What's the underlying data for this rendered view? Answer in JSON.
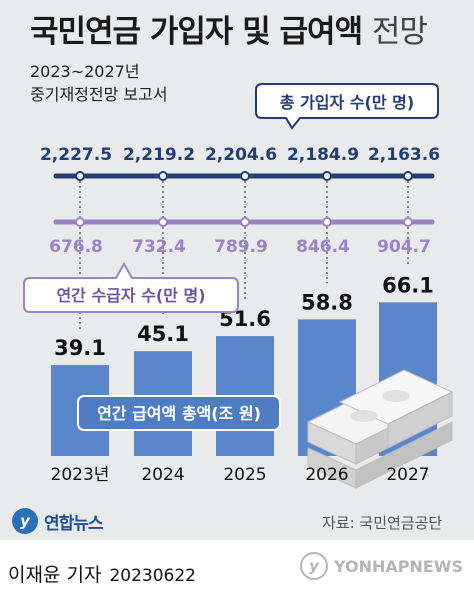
{
  "title": {
    "main": "국민연금 가입자 및 급여액",
    "suffix": "전망"
  },
  "subtitle": {
    "line1": "2023~2027년",
    "line2": "중기재정전망 보고서"
  },
  "source": "자료: 국민연금공단",
  "logo": {
    "name": "연합뉴스",
    "mark": "y"
  },
  "byline": {
    "reporter": "이재윤 기자",
    "date": "20230622"
  },
  "watermark": "YONHAPNEWS",
  "colors": {
    "top_line": "#233e73",
    "mid_line": "#9b83c5",
    "bar": "#5a87cc",
    "bar_label_box": "#4f7cc3"
  },
  "chart_data": [
    {
      "type": "line",
      "name": "총 가입자 수(만 명)",
      "x": [
        "2023년",
        "2024",
        "2025",
        "2026",
        "2027"
      ],
      "values": [
        2227.5,
        2219.2,
        2204.6,
        2184.9,
        2163.6
      ],
      "labels": [
        "2,227.5",
        "2,219.2",
        "2,204.6",
        "2,184.9",
        "2,163.6"
      ]
    },
    {
      "type": "line",
      "name": "연간 수급자 수(만 명)",
      "x": [
        "2023년",
        "2024",
        "2025",
        "2026",
        "2027"
      ],
      "values": [
        676.8,
        732.4,
        789.9,
        846.4,
        904.7
      ],
      "labels": [
        "676.8",
        "732.4",
        "789.9",
        "846.4",
        "904.7"
      ]
    },
    {
      "type": "bar",
      "name": "연간 급여액 총액(조 원)",
      "categories": [
        "2023년",
        "2024",
        "2025",
        "2026",
        "2027"
      ],
      "values": [
        39.1,
        45.1,
        51.6,
        58.8,
        66.1
      ],
      "labels": [
        "39.1",
        "45.1",
        "51.6",
        "58.8",
        "66.1"
      ],
      "ylim": [
        0,
        70
      ]
    }
  ]
}
